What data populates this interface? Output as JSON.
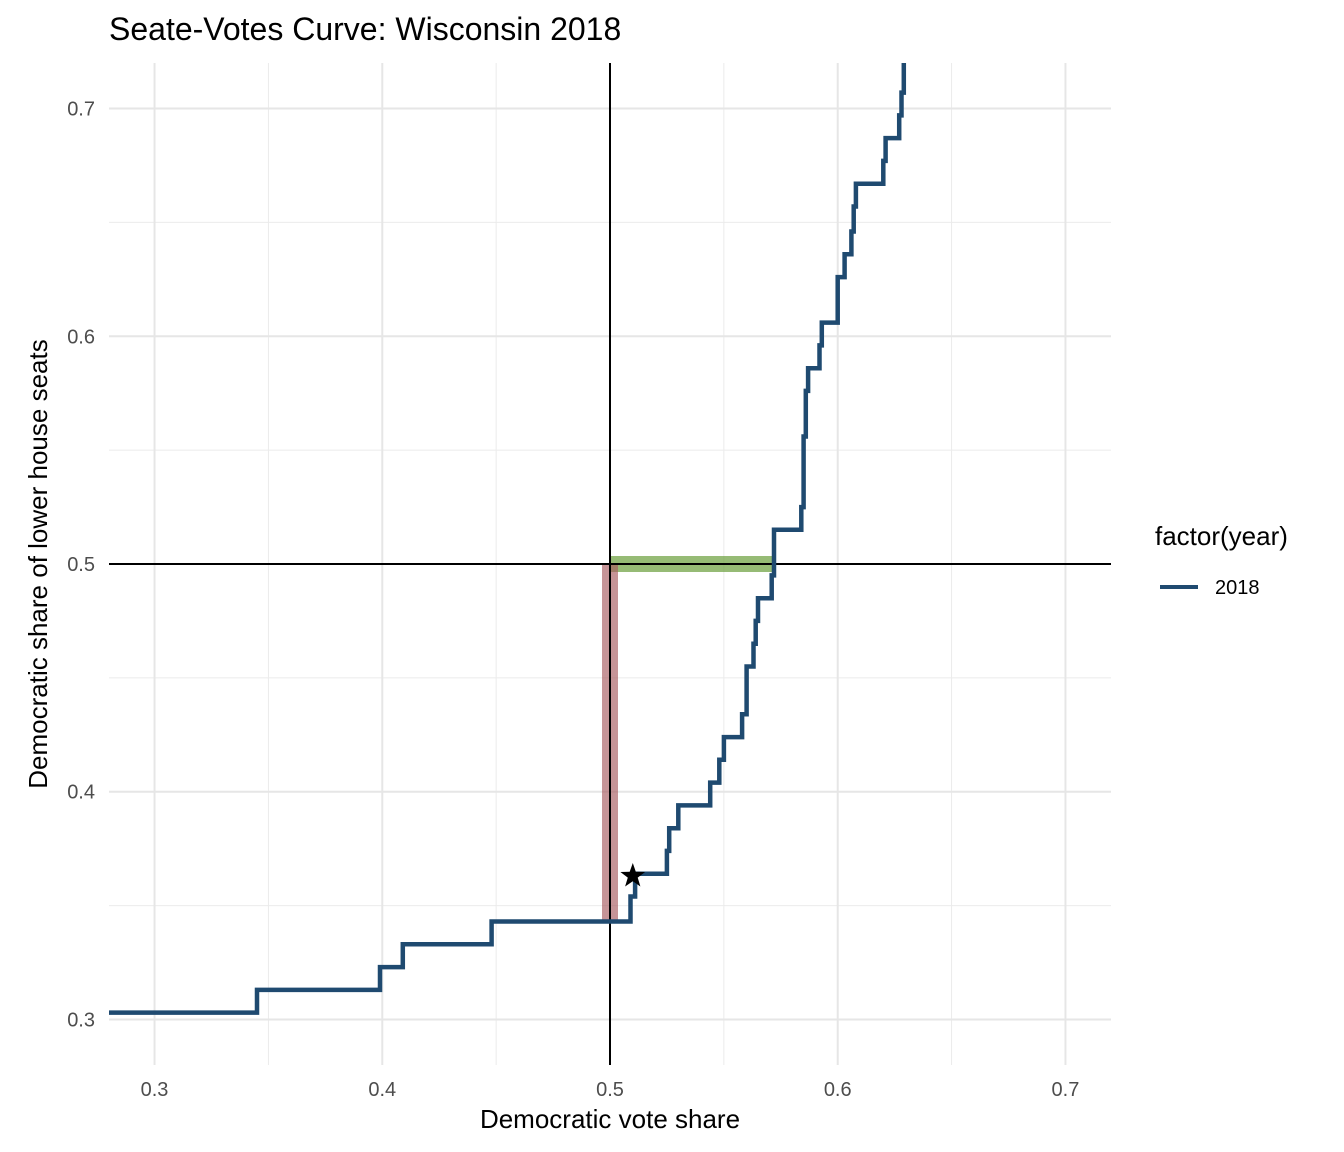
{
  "chart_data": {
    "type": "line",
    "title": "Seate-Votes Curve: Wisconsin 2018",
    "xlabel": "Democratic vote share",
    "ylabel": "Democratic share of lower house seats",
    "xlim": [
      0.28,
      0.72
    ],
    "ylim": [
      0.28,
      0.72
    ],
    "x_ticks": [
      "0.3",
      "0.4",
      "0.5",
      "0.6",
      "0.7"
    ],
    "y_ticks": [
      "0.3",
      "0.4",
      "0.5",
      "0.6",
      "0.7"
    ],
    "grid": true,
    "legend": {
      "title": "factor(year)",
      "placement": "right"
    },
    "series": [
      {
        "name": "2018",
        "color": "#1f4a70",
        "step": true,
        "points": [
          [
            0.28,
            0.303
          ],
          [
            0.345,
            0.303
          ],
          [
            0.345,
            0.313
          ],
          [
            0.399,
            0.313
          ],
          [
            0.399,
            0.323
          ],
          [
            0.409,
            0.323
          ],
          [
            0.409,
            0.333
          ],
          [
            0.448,
            0.333
          ],
          [
            0.448,
            0.343
          ],
          [
            0.509,
            0.343
          ],
          [
            0.509,
            0.354
          ],
          [
            0.511,
            0.354
          ],
          [
            0.511,
            0.364
          ],
          [
            0.525,
            0.364
          ],
          [
            0.525,
            0.374
          ],
          [
            0.526,
            0.374
          ],
          [
            0.526,
            0.384
          ],
          [
            0.53,
            0.384
          ],
          [
            0.53,
            0.394
          ],
          [
            0.544,
            0.394
          ],
          [
            0.544,
            0.404
          ],
          [
            0.548,
            0.404
          ],
          [
            0.548,
            0.414
          ],
          [
            0.55,
            0.414
          ],
          [
            0.55,
            0.424
          ],
          [
            0.558,
            0.424
          ],
          [
            0.558,
            0.434
          ],
          [
            0.56,
            0.434
          ],
          [
            0.56,
            0.455
          ],
          [
            0.563,
            0.455
          ],
          [
            0.563,
            0.465
          ],
          [
            0.564,
            0.465
          ],
          [
            0.564,
            0.475
          ],
          [
            0.565,
            0.475
          ],
          [
            0.565,
            0.485
          ],
          [
            0.571,
            0.485
          ],
          [
            0.571,
            0.495
          ],
          [
            0.572,
            0.495
          ],
          [
            0.572,
            0.515
          ],
          [
            0.584,
            0.515
          ],
          [
            0.584,
            0.525
          ],
          [
            0.585,
            0.525
          ],
          [
            0.585,
            0.535
          ],
          [
            0.585,
            0.535
          ],
          [
            0.585,
            0.556
          ],
          [
            0.586,
            0.556
          ],
          [
            0.586,
            0.576
          ],
          [
            0.587,
            0.576
          ],
          [
            0.587,
            0.586
          ],
          [
            0.592,
            0.586
          ],
          [
            0.592,
            0.596
          ],
          [
            0.593,
            0.596
          ],
          [
            0.593,
            0.606
          ],
          [
            0.6,
            0.606
          ],
          [
            0.6,
            0.616
          ],
          [
            0.6,
            0.616
          ],
          [
            0.6,
            0.626
          ],
          [
            0.603,
            0.626
          ],
          [
            0.603,
            0.636
          ],
          [
            0.606,
            0.636
          ],
          [
            0.606,
            0.646
          ],
          [
            0.607,
            0.646
          ],
          [
            0.607,
            0.657
          ],
          [
            0.608,
            0.657
          ],
          [
            0.608,
            0.667
          ],
          [
            0.62,
            0.667
          ],
          [
            0.62,
            0.677
          ],
          [
            0.621,
            0.677
          ],
          [
            0.621,
            0.687
          ],
          [
            0.627,
            0.687
          ],
          [
            0.627,
            0.697
          ],
          [
            0.628,
            0.697
          ],
          [
            0.628,
            0.707
          ],
          [
            0.629,
            0.707
          ],
          [
            0.629,
            0.72
          ]
        ]
      }
    ],
    "reference_lines": {
      "vertical_x": 0.5,
      "horizontal_y": 0.5,
      "color": "#000000"
    },
    "highlights": [
      {
        "kind": "horizontal-bar",
        "y": 0.5,
        "x_from": 0.5,
        "x_to": 0.572,
        "color": "#6a9e3a"
      },
      {
        "kind": "vertical-bar",
        "x": 0.5,
        "y_from": 0.343,
        "y_to": 0.5,
        "color": "#a85a5f"
      }
    ],
    "marker": {
      "shape": "star",
      "x": 0.51,
      "y": 0.363,
      "color": "#000000"
    }
  }
}
